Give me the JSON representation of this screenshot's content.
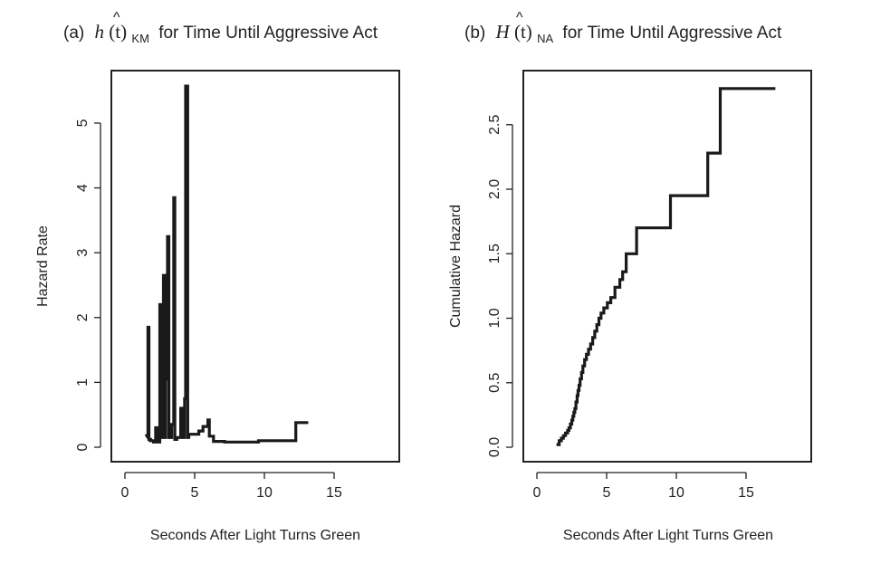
{
  "chart_data": [
    {
      "type": "line",
      "panel": "(a)",
      "title_func": "h",
      "title_arg": "(t)",
      "title_sub": "KM",
      "title_rest": "for Time Until Aggressive Act",
      "xlabel": "Seconds After Light Turns Green",
      "ylabel": "Hazard Rate",
      "xlim": [
        0,
        18.7
      ],
      "ylim": [
        0,
        5.6
      ],
      "xticks": [
        0,
        5,
        10,
        15
      ],
      "yticks": [
        0,
        1,
        2,
        3,
        4,
        5
      ],
      "series": [
        {
          "x": [
            1.5,
            1.5,
            1.65,
            1.65,
            1.72,
            1.72,
            1.85,
            1.85,
            2.05,
            2.05,
            2.2,
            2.2,
            2.38,
            2.38,
            2.5,
            2.5,
            2.6,
            2.6,
            2.7,
            2.7,
            2.76,
            2.76,
            2.85,
            2.85,
            2.92,
            2.92,
            3.05,
            3.05,
            3.15,
            3.15,
            3.35,
            3.35,
            3.5,
            3.5,
            3.58,
            3.58,
            3.72,
            3.72,
            4.0,
            4.0,
            4.1,
            4.1,
            4.28,
            4.28,
            4.35,
            4.35,
            4.5,
            4.5,
            4.58,
            4.58,
            5.3,
            5.3,
            5.6,
            5.6,
            5.95,
            5.95,
            6.05,
            6.05,
            6.35,
            6.35,
            7.15,
            7.15,
            9.58,
            9.58,
            12.25,
            12.25,
            13.15
          ],
          "y": [
            0.2,
            0.2,
            0.15,
            1.85,
            1.85,
            0.12,
            0.12,
            0.1,
            0.1,
            0.08,
            0.08,
            0.3,
            0.3,
            0.08,
            0.08,
            2.2,
            2.2,
            0.15,
            0.15,
            0.5,
            0.5,
            2.65,
            2.65,
            0.15,
            0.15,
            1.05,
            1.05,
            3.25,
            3.25,
            0.15,
            0.15,
            0.35,
            0.35,
            3.85,
            3.85,
            0.12,
            0.12,
            0.15,
            0.15,
            0.6,
            0.6,
            0.15,
            0.15,
            0.75,
            0.75,
            5.57,
            5.57,
            0.15,
            0.15,
            0.2,
            0.2,
            0.25,
            0.25,
            0.32,
            0.32,
            0.42,
            0.42,
            0.17,
            0.17,
            0.09,
            0.09,
            0.08,
            0.08,
            0.1,
            0.1,
            0.38,
            0.38
          ]
        }
      ]
    },
    {
      "type": "line",
      "panel": "(b)",
      "title_func": "H",
      "title_arg": "(t)",
      "title_sub": "NA",
      "title_rest": "for Time Until Aggressive Act",
      "xlabel": "Seconds After Light Turns Green",
      "ylabel": "Cumulative Hazard",
      "xlim": [
        0,
        18.7
      ],
      "ylim": [
        0,
        2.8
      ],
      "xticks": [
        0,
        5,
        10,
        15
      ],
      "yticks": [
        "0.0",
        "0.5",
        "1.0",
        "1.5",
        "2.0",
        "2.5"
      ],
      "series": [
        {
          "x": [
            1.4,
            1.6,
            1.75,
            1.9,
            2.05,
            2.2,
            2.3,
            2.4,
            2.5,
            2.58,
            2.65,
            2.72,
            2.8,
            2.88,
            2.95,
            3.02,
            3.1,
            3.2,
            3.3,
            3.42,
            3.55,
            3.7,
            3.85,
            4.0,
            4.15,
            4.3,
            4.45,
            4.6,
            4.8,
            5.05,
            5.3,
            5.6,
            5.95,
            6.15,
            6.4,
            7.15,
            9.58,
            12.25,
            13.15,
            17.1
          ],
          "y": [
            0.02,
            0.05,
            0.07,
            0.09,
            0.11,
            0.13,
            0.15,
            0.18,
            0.21,
            0.24,
            0.27,
            0.3,
            0.35,
            0.4,
            0.44,
            0.48,
            0.53,
            0.58,
            0.63,
            0.68,
            0.72,
            0.76,
            0.8,
            0.85,
            0.9,
            0.95,
            1.0,
            1.04,
            1.08,
            1.12,
            1.16,
            1.24,
            1.3,
            1.36,
            1.5,
            1.7,
            1.95,
            2.28,
            2.78,
            2.78
          ]
        }
      ]
    }
  ]
}
